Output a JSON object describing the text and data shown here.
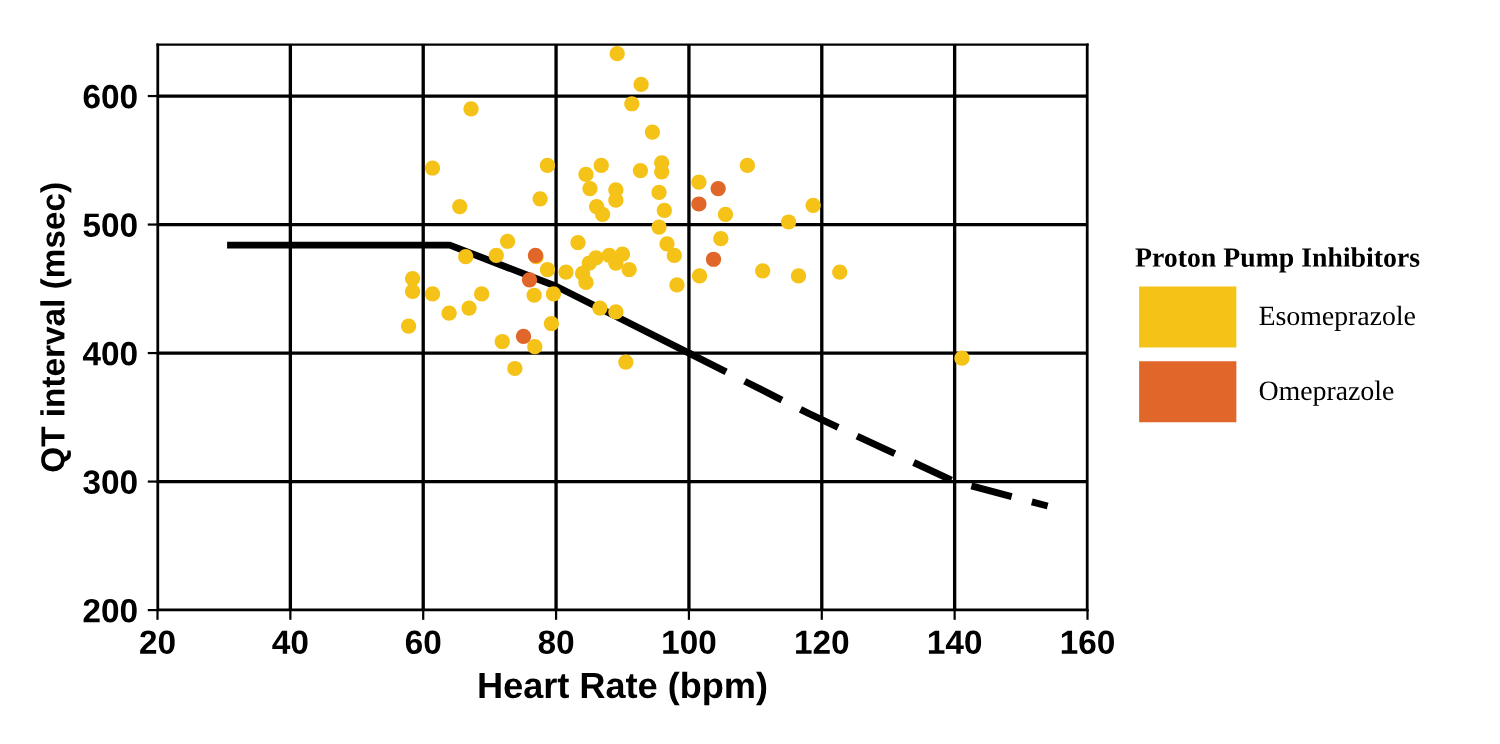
{
  "chart_data": {
    "type": "scatter",
    "xlabel": "Heart Rate (bpm)",
    "ylabel": "QT interval (msec)",
    "legend_title": "Proton Pump Inhibitors",
    "xlim": [
      20,
      160
    ],
    "ylim": [
      200,
      640
    ],
    "xticks": [
      20,
      40,
      60,
      80,
      100,
      120,
      140,
      160
    ],
    "yticks": [
      200,
      300,
      400,
      500,
      600
    ],
    "grid": true,
    "legend": "right",
    "marker": "circle",
    "series": [
      {
        "name": "Esomeprazole",
        "color": "#f5c218",
        "x": [
          89.2,
          92.8,
          91.4,
          67.2,
          94.5,
          61.4,
          78.7,
          86.8,
          84.5,
          92.7,
          85.1,
          89,
          89,
          77.6,
          65.5,
          86.1,
          87,
          95.9,
          95.9,
          95.5,
          96.3,
          101.5,
          105.5,
          95.5,
          104.8,
          96.7,
          97.8,
          101.6,
          98.2,
          72.7,
          83.3,
          71,
          66.4,
          77,
          78.7,
          81.5,
          84,
          85,
          86,
          88,
          90,
          91,
          89,
          84.5,
          58.4,
          58.4,
          61.4,
          68.8,
          76.7,
          79.6,
          66.9,
          63.9,
          86.6,
          89,
          79.3,
          57.8,
          71.9,
          76.8,
          73.8,
          90.5,
          108.8,
          118.7,
          115,
          111.1,
          116.5,
          122.7,
          141.1
        ],
        "values": [
          633,
          609,
          594,
          590,
          572,
          544,
          546,
          546,
          539,
          542,
          528,
          527,
          519,
          520,
          514,
          514,
          508,
          548,
          541,
          525,
          511,
          533,
          508,
          498,
          489,
          485,
          476,
          460,
          453,
          487,
          486,
          476,
          475,
          475,
          465,
          463,
          462,
          470,
          474,
          476,
          477,
          465,
          470,
          455,
          458,
          448,
          446,
          446,
          445,
          446,
          435,
          431,
          435,
          432,
          423,
          421,
          409,
          405,
          388,
          393,
          546,
          515,
          502,
          464,
          460,
          463,
          396
        ]
      },
      {
        "name": "Omeprazole",
        "color": "#e0662a",
        "x": [
          104.4,
          101.5,
          103.7,
          76.9,
          76,
          75.1
        ],
        "values": [
          528,
          516,
          473,
          476,
          457,
          413
        ]
      },
      {
        "color": "#000000",
        "type": "line",
        "line_style": "solid",
        "marker": "none",
        "x": [
          31,
          64,
          80,
          100
        ],
        "values": [
          484,
          484,
          452,
          400
        ]
      },
      {
        "color": "#000000",
        "type": "line",
        "line_style": "dashed",
        "marker": "none",
        "x": [
          100,
          118,
          140,
          154
        ],
        "values": [
          400,
          353,
          300,
          281
        ]
      }
    ]
  }
}
